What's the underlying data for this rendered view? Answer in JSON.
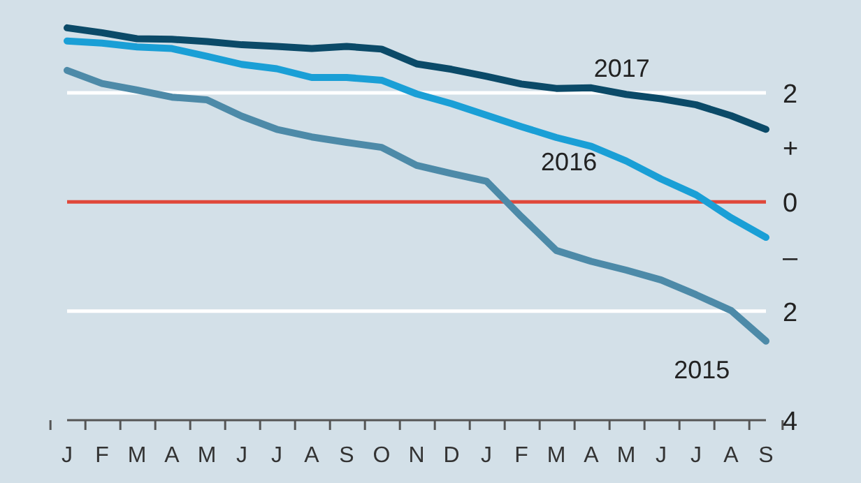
{
  "chart_data": {
    "type": "line",
    "categories": [
      "J",
      "F",
      "M",
      "A",
      "M",
      "J",
      "J",
      "A",
      "S",
      "O",
      "N",
      "D",
      "J",
      "F",
      "M",
      "A",
      "M",
      "J",
      "J",
      "A",
      "S"
    ],
    "ylim": [
      -4,
      3.7
    ],
    "yticks": [
      {
        "value": 2,
        "label": "2"
      },
      {
        "value": 1,
        "label": "+"
      },
      {
        "value": 0,
        "label": "0"
      },
      {
        "value": -1,
        "label": "–"
      },
      {
        "value": -2,
        "label": "2"
      },
      {
        "value": -4,
        "label": "4"
      }
    ],
    "ref_lines": [
      {
        "axis": "y",
        "value": 2,
        "color": "#ffffff"
      },
      {
        "axis": "y",
        "value": -2,
        "color": "#ffffff"
      },
      {
        "axis": "y",
        "value": 0,
        "color": "#e0483a"
      }
    ],
    "series": [
      {
        "name": "2017",
        "color": "#0b4a68",
        "values": [
          3.19,
          3.1,
          2.99,
          2.98,
          2.94,
          2.88,
          2.85,
          2.81,
          2.85,
          2.8,
          2.53,
          2.43,
          2.3,
          2.16,
          2.08,
          2.09,
          1.97,
          1.89,
          1.78,
          1.58,
          1.33
        ]
      },
      {
        "name": "2016",
        "color": "#1a9fd6",
        "values": [
          2.95,
          2.91,
          2.84,
          2.81,
          2.67,
          2.52,
          2.44,
          2.28,
          2.28,
          2.23,
          1.98,
          1.8,
          1.59,
          1.38,
          1.18,
          1.02,
          0.75,
          0.42,
          0.13,
          -0.29,
          -0.65
        ]
      },
      {
        "name": "2015",
        "color": "#4d8aa8",
        "values": [
          2.41,
          2.17,
          2.05,
          1.92,
          1.87,
          1.57,
          1.33,
          1.19,
          1.09,
          1.0,
          0.67,
          0.52,
          0.38,
          -0.27,
          -0.89,
          -1.09,
          -1.25,
          -1.43,
          -1.7,
          -1.99,
          -2.55
        ]
      }
    ]
  }
}
